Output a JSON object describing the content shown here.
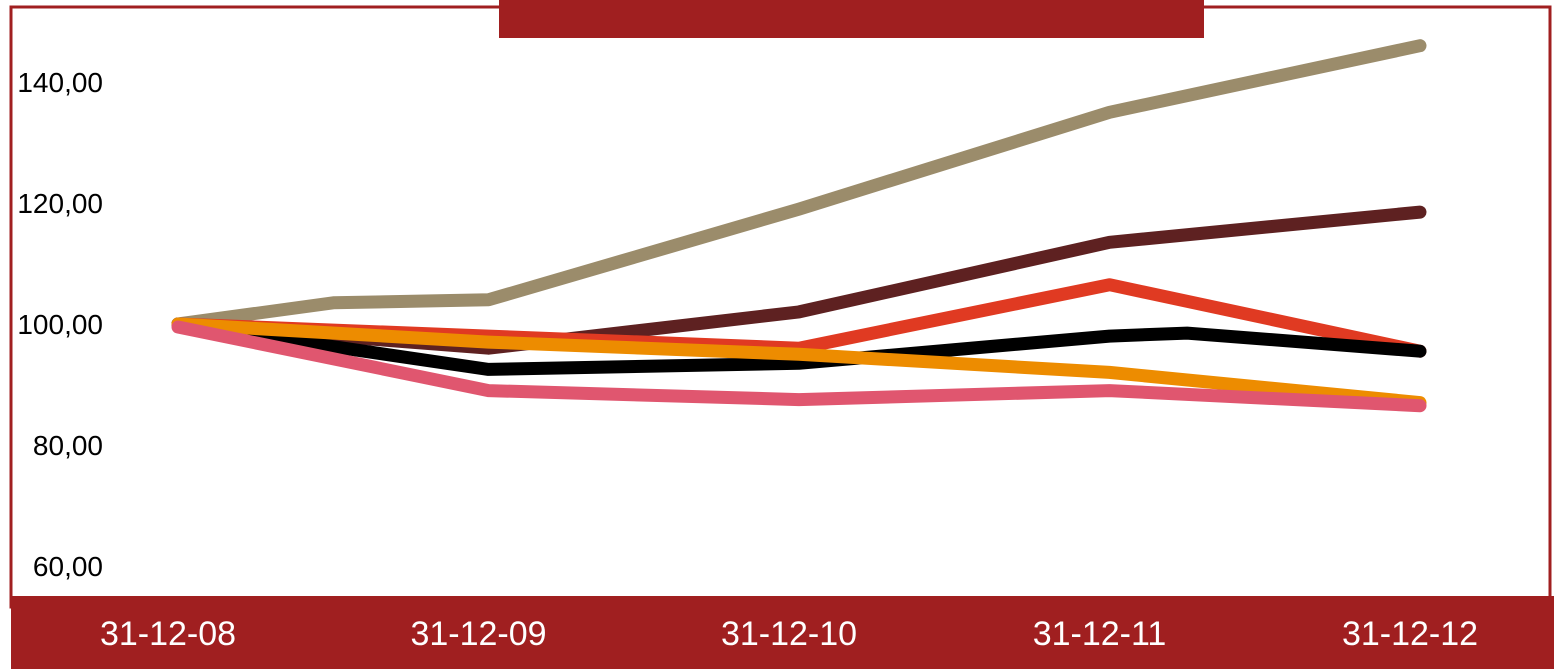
{
  "chart_data": {
    "type": "line",
    "title": "",
    "xlabel": "",
    "ylabel": "",
    "categories": [
      "31-12-08",
      "31-12-09",
      "31-12-10",
      "31-12-11",
      "31-12-12"
    ],
    "ylim": [
      55,
      150
    ],
    "yticks": [
      "60,00",
      "80,00",
      "100,00",
      "120,00",
      "140,00"
    ],
    "ytick_values": [
      60,
      80,
      100,
      120,
      140
    ],
    "grid": false,
    "legend": "none",
    "series": [
      {
        "color": "#9b8c6b",
        "points": [
          [
            0,
            100
          ],
          [
            0.5,
            103.5
          ],
          [
            1,
            104
          ],
          [
            2,
            119
          ],
          [
            3,
            135
          ],
          [
            4,
            146
          ]
        ]
      },
      {
        "color": "#5e2121",
        "points": [
          [
            0,
            100
          ],
          [
            1,
            96
          ],
          [
            2,
            102
          ],
          [
            3,
            113.5
          ],
          [
            4,
            118.5
          ]
        ]
      },
      {
        "color": "#e03a22",
        "points": [
          [
            0,
            100
          ],
          [
            1,
            98
          ],
          [
            2,
            96
          ],
          [
            3,
            106.5
          ],
          [
            4,
            95.5
          ]
        ]
      },
      {
        "color": "#000000",
        "points": [
          [
            0,
            100
          ],
          [
            1,
            92.5
          ],
          [
            2,
            93.5
          ],
          [
            3,
            98
          ],
          [
            3.25,
            98.5
          ],
          [
            4,
            95.5
          ]
        ]
      },
      {
        "color": "#ed8c00",
        "points": [
          [
            0,
            100
          ],
          [
            1,
            97
          ],
          [
            2,
            95
          ],
          [
            3,
            92
          ],
          [
            4,
            87
          ]
        ]
      },
      {
        "color": "#e0566f",
        "points": [
          [
            0,
            99.5
          ],
          [
            1,
            89
          ],
          [
            2,
            87.5
          ],
          [
            3,
            89
          ],
          [
            4,
            86.5
          ]
        ]
      }
    ],
    "colors": {
      "frame": "#a01f20",
      "axis_band": "#a01f20"
    }
  }
}
